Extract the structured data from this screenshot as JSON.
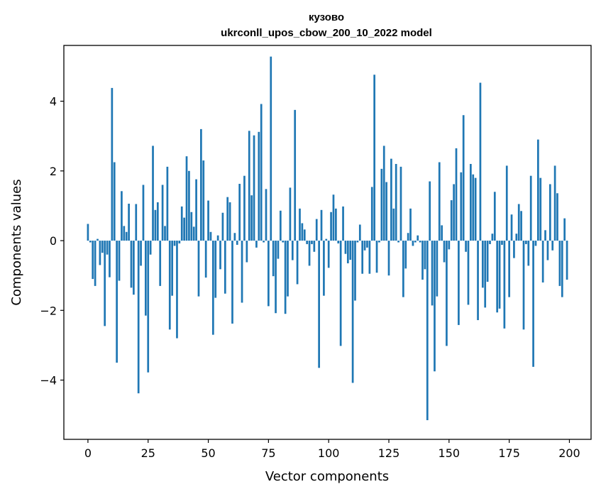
{
  "chart_data": {
    "type": "bar",
    "title": "кузово",
    "subtitle": "ukrconll_upos_cbow_200_10_2022 model",
    "xlabel": "Vector components",
    "ylabel": "Components values",
    "xlim": [
      -10,
      209
    ],
    "ylim": [
      -5.7,
      5.6
    ],
    "xticks": [
      0,
      25,
      50,
      75,
      100,
      125,
      150,
      175,
      200
    ],
    "yticks": [
      -4,
      -2,
      0,
      2,
      4
    ],
    "ytick_labels": [
      "−4",
      "−2",
      "0",
      "2",
      "4"
    ],
    "grid": false,
    "legend": "none",
    "bar_color": "#1f77b4",
    "x": [
      0,
      1,
      2,
      3,
      4,
      5,
      6,
      7,
      8,
      9,
      10,
      11,
      12,
      13,
      14,
      15,
      16,
      17,
      18,
      19,
      20,
      21,
      22,
      23,
      24,
      25,
      26,
      27,
      28,
      29,
      30,
      31,
      32,
      33,
      34,
      35,
      36,
      37,
      38,
      39,
      40,
      41,
      42,
      43,
      44,
      45,
      46,
      47,
      48,
      49,
      50,
      51,
      52,
      53,
      54,
      55,
      56,
      57,
      58,
      59,
      60,
      61,
      62,
      63,
      64,
      65,
      66,
      67,
      68,
      69,
      70,
      71,
      72,
      73,
      74,
      75,
      76,
      77,
      78,
      79,
      80,
      81,
      82,
      83,
      84,
      85,
      86,
      87,
      88,
      89,
      90,
      91,
      92,
      93,
      94,
      95,
      96,
      97,
      98,
      99,
      100,
      101,
      102,
      103,
      104,
      105,
      106,
      107,
      108,
      109,
      110,
      111,
      112,
      113,
      114,
      115,
      116,
      117,
      118,
      119,
      120,
      121,
      122,
      123,
      124,
      125,
      126,
      127,
      128,
      129,
      130,
      131,
      132,
      133,
      134,
      135,
      136,
      137,
      138,
      139,
      140,
      141,
      142,
      143,
      144,
      145,
      146,
      147,
      148,
      149,
      150,
      151,
      152,
      153,
      154,
      155,
      156,
      157,
      158,
      159,
      160,
      161,
      162,
      163,
      164,
      165,
      166,
      167,
      168,
      169,
      170,
      171,
      172,
      173,
      174,
      175,
      176,
      177,
      178,
      179,
      180,
      181,
      182,
      183,
      184,
      185,
      186,
      187,
      188,
      189,
      190,
      191,
      192,
      193,
      194,
      195,
      196,
      197,
      198,
      199
    ],
    "values": [
      0.48,
      -0.05,
      -1.1,
      -1.3,
      0.05,
      -0.7,
      -0.35,
      -2.45,
      -0.4,
      -1.05,
      4.38,
      2.25,
      -3.5,
      -1.15,
      1.42,
      0.42,
      0.25,
      1.06,
      -1.35,
      -1.55,
      1.05,
      -4.38,
      -0.72,
      1.6,
      -2.15,
      -3.78,
      -0.4,
      2.72,
      0.88,
      1.1,
      -1.3,
      1.6,
      0.42,
      2.12,
      -2.55,
      -1.58,
      -0.15,
      -2.8,
      -0.08,
      0.98,
      0.66,
      2.42,
      2.0,
      0.82,
      0.4,
      1.76,
      -1.6,
      3.2,
      2.3,
      -1.06,
      1.15,
      0.25,
      -2.7,
      -1.64,
      0.15,
      -0.82,
      0.8,
      -1.52,
      1.25,
      1.1,
      -2.38,
      0.22,
      -0.12,
      1.63,
      -1.78,
      1.86,
      -0.62,
      3.15,
      1.3,
      3.02,
      -0.2,
      3.12,
      3.92,
      -0.05,
      1.48,
      -1.88,
      5.28,
      -1.02,
      -2.08,
      -0.52,
      0.86,
      -0.05,
      -2.1,
      -1.6,
      1.52,
      -0.56,
      3.75,
      -1.25,
      0.92,
      0.5,
      0.32,
      -0.1,
      -0.72,
      -0.1,
      -0.32,
      0.62,
      -3.65,
      0.88,
      -1.58,
      0.05,
      -0.78,
      0.82,
      1.32,
      0.92,
      -0.08,
      -3.02,
      0.98,
      -0.38,
      -0.65,
      -0.55,
      -4.08,
      -1.72,
      -0.05,
      0.46,
      -0.95,
      -0.28,
      -0.2,
      -0.95,
      1.54,
      4.76,
      -0.92,
      -0.05,
      2.06,
      2.72,
      1.68,
      -1.0,
      2.35,
      0.92,
      2.2,
      -0.05,
      2.12,
      -1.62,
      -0.8,
      0.22,
      0.92,
      -0.15,
      -0.05,
      0.15,
      -0.05,
      -1.12,
      -0.82,
      -5.15,
      1.7,
      -1.86,
      -3.75,
      -1.6,
      2.25,
      0.44,
      -0.62,
      -3.02,
      -0.25,
      1.16,
      1.62,
      2.65,
      -2.42,
      1.96,
      3.6,
      -0.32,
      -1.84,
      2.2,
      1.9,
      1.8,
      -2.28,
      4.53,
      -1.35,
      -1.92,
      -1.18,
      -0.1,
      0.2,
      1.4,
      -2.06,
      -1.95,
      -0.12,
      -2.52,
      2.15,
      -1.62,
      0.75,
      -0.5,
      0.2,
      1.05,
      0.85,
      -2.55,
      -0.1,
      -0.72,
      1.86,
      -3.62,
      -0.15,
      2.9,
      1.8,
      -1.2,
      0.3,
      -0.56,
      1.62,
      -0.28,
      2.15,
      1.36,
      -1.3,
      -1.62,
      0.64,
      -1.12
    ]
  }
}
